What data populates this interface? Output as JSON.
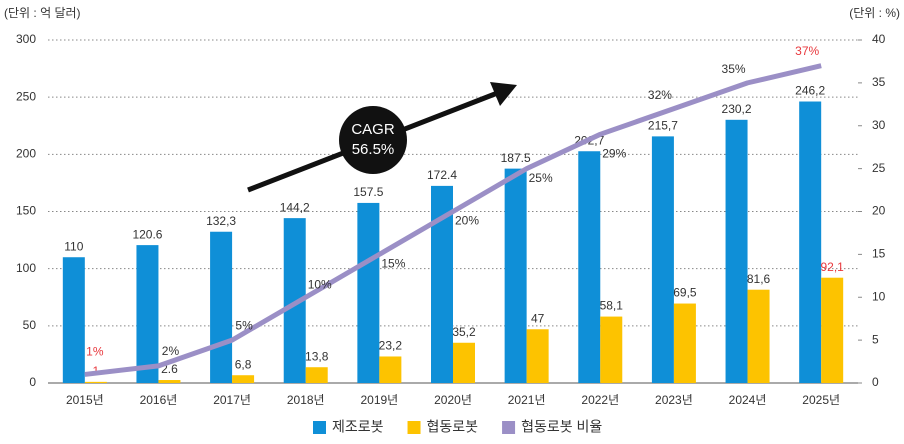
{
  "chart_data": {
    "type": "bar_line",
    "y_label": "(단위 : 억 달러)",
    "y2_label": "(단위 : %)",
    "categories": [
      "2015년",
      "2016년",
      "2017년",
      "2018년",
      "2019년",
      "2020년",
      "2021년",
      "2022년",
      "2023년",
      "2024년",
      "2025년"
    ],
    "series": [
      {
        "name": "제조로봇",
        "type": "bar",
        "color": "#0f8fd7",
        "values": [
          110,
          120.6,
          132.3,
          144.2,
          157.5,
          172.4,
          187.5,
          202.7,
          215.7,
          230.2,
          246.2
        ],
        "value_labels": [
          "110",
          "120.6",
          "132,3",
          "144,2",
          "157.5",
          "172.4",
          "187.5",
          "202,7",
          "215,7",
          "230,2",
          "246,2"
        ],
        "label_colors": [
          "#333",
          "#333",
          "#333",
          "#333",
          "#333",
          "#333",
          "#333",
          "#333",
          "#333",
          "#333",
          "#333"
        ]
      },
      {
        "name": "협동로봇",
        "type": "bar",
        "color": "#fdc300",
        "values": [
          1,
          2.6,
          6.8,
          13.8,
          23.2,
          35.2,
          47,
          58.1,
          69.5,
          81.6,
          92.1
        ],
        "value_labels": [
          "1",
          "2.6",
          "6,8",
          "13,8",
          "23,2",
          "35,2",
          "47",
          "58,1",
          "69,5",
          "81,6",
          "92,1"
        ],
        "label_colors": [
          "#e8383d",
          "#333",
          "#333",
          "#333",
          "#333",
          "#333",
          "#333",
          "#333",
          "#333",
          "#333",
          "#e8383d"
        ]
      },
      {
        "name": "협동로봇 비율",
        "type": "line",
        "axis": "y2",
        "color": "#9b8fc6",
        "values": [
          1,
          2,
          5,
          10,
          15,
          20,
          25,
          29,
          32,
          35,
          37
        ],
        "value_labels": [
          "1%",
          "2%",
          "5%",
          "10%",
          "15%",
          "20%",
          "25%",
          "29%",
          "32%",
          "35%",
          "37%"
        ],
        "label_colors": [
          "#e8383d",
          "#333",
          "#333",
          "#333",
          "#333",
          "#333",
          "#333",
          "#333",
          "#333",
          "#333",
          "#e8383d"
        ]
      }
    ],
    "ylim": [
      0,
      300
    ],
    "yticks": [
      0,
      50,
      100,
      150,
      200,
      250,
      300
    ],
    "y2lim": [
      0,
      40
    ],
    "y2ticks": [
      0,
      5,
      10,
      15,
      20,
      25,
      30,
      35,
      40
    ],
    "grid": true,
    "annotation": {
      "lines": [
        "CAGR",
        "56.5%"
      ]
    }
  }
}
